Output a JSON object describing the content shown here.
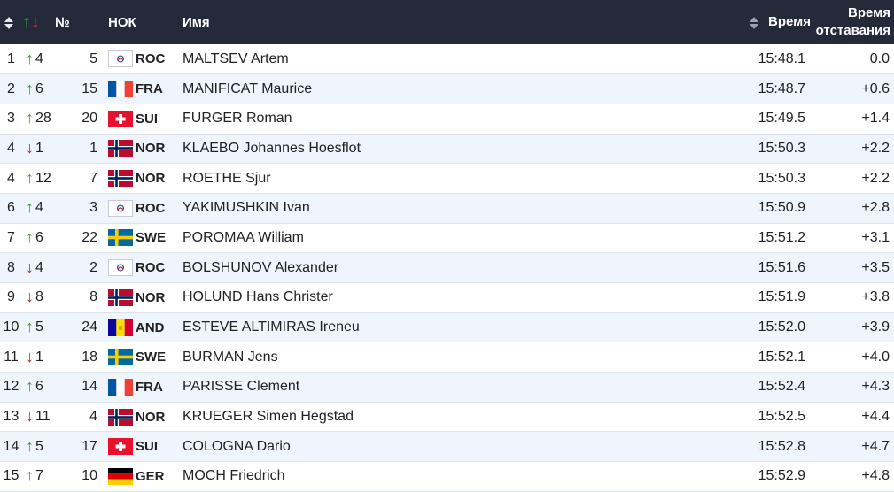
{
  "columns": {
    "rank": "",
    "movement": "",
    "bib": "№",
    "noc": "НОК",
    "name": "Имя",
    "time": "Время",
    "gap_line1": "Время",
    "gap_line2": "отставания"
  },
  "colors": {
    "header_bg": "#252a3a",
    "row_alt_bg": "#eef5fc",
    "up_arrow": "#3a9a2e",
    "down_arrow": "#c32626"
  },
  "rows": [
    {
      "rank": "1",
      "dir": "up",
      "move": "4",
      "bib": "5",
      "noc": "ROC",
      "name": "MALTSEV Artem",
      "time": "15:48.1",
      "gap": "0.0"
    },
    {
      "rank": "2",
      "dir": "up",
      "move": "6",
      "bib": "15",
      "noc": "FRA",
      "name": "MANIFICAT Maurice",
      "time": "15:48.7",
      "gap": "+0.6"
    },
    {
      "rank": "3",
      "dir": "up",
      "move": "28",
      "bib": "20",
      "noc": "SUI",
      "name": "FURGER Roman",
      "time": "15:49.5",
      "gap": "+1.4"
    },
    {
      "rank": "4",
      "dir": "down",
      "move": "1",
      "bib": "1",
      "noc": "NOR",
      "name": "KLAEBO Johannes Hoesflot",
      "time": "15:50.3",
      "gap": "+2.2"
    },
    {
      "rank": "4",
      "dir": "up",
      "move": "12",
      "bib": "7",
      "noc": "NOR",
      "name": "ROETHE Sjur",
      "time": "15:50.3",
      "gap": "+2.2"
    },
    {
      "rank": "6",
      "dir": "up",
      "move": "4",
      "bib": "3",
      "noc": "ROC",
      "name": "YAKIMUSHKIN Ivan",
      "time": "15:50.9",
      "gap": "+2.8"
    },
    {
      "rank": "7",
      "dir": "up",
      "move": "6",
      "bib": "22",
      "noc": "SWE",
      "name": "POROMAA William",
      "time": "15:51.2",
      "gap": "+3.1"
    },
    {
      "rank": "8",
      "dir": "down",
      "move": "4",
      "bib": "2",
      "noc": "ROC",
      "name": "BOLSHUNOV Alexander",
      "time": "15:51.6",
      "gap": "+3.5"
    },
    {
      "rank": "9",
      "dir": "down",
      "move": "8",
      "bib": "8",
      "noc": "NOR",
      "name": "HOLUND Hans Christer",
      "time": "15:51.9",
      "gap": "+3.8"
    },
    {
      "rank": "10",
      "dir": "up",
      "move": "5",
      "bib": "24",
      "noc": "AND",
      "name": "ESTEVE ALTIMIRAS Ireneu",
      "time": "15:52.0",
      "gap": "+3.9"
    },
    {
      "rank": "11",
      "dir": "down",
      "move": "1",
      "bib": "18",
      "noc": "SWE",
      "name": "BURMAN Jens",
      "time": "15:52.1",
      "gap": "+4.0"
    },
    {
      "rank": "12",
      "dir": "up",
      "move": "6",
      "bib": "14",
      "noc": "FRA",
      "name": "PARISSE Clement",
      "time": "15:52.4",
      "gap": "+4.3"
    },
    {
      "rank": "13",
      "dir": "down",
      "move": "11",
      "bib": "4",
      "noc": "NOR",
      "name": "KRUEGER Simen Hegstad",
      "time": "15:52.5",
      "gap": "+4.4"
    },
    {
      "rank": "14",
      "dir": "up",
      "move": "5",
      "bib": "17",
      "noc": "SUI",
      "name": "COLOGNA Dario",
      "time": "15:52.8",
      "gap": "+4.7"
    },
    {
      "rank": "15",
      "dir": "up",
      "move": "7",
      "bib": "10",
      "noc": "GER",
      "name": "MOCH Friedrich",
      "time": "15:52.9",
      "gap": "+4.8"
    }
  ]
}
